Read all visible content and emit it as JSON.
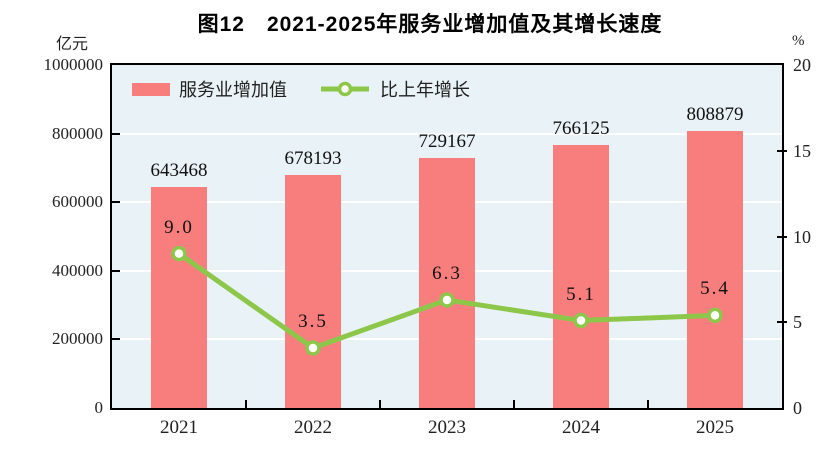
{
  "title": "图12　2021-2025年服务业增加值及其增长速度",
  "chart_data": {
    "type": "bar+line",
    "categories": [
      "2021",
      "2022",
      "2023",
      "2024",
      "2025"
    ],
    "series": [
      {
        "name": "服务业增加值",
        "type": "bar",
        "axis": "left",
        "color": "#F87E7E",
        "values": [
          643468,
          678193,
          729167,
          766125,
          808879
        ],
        "labels": [
          "643468",
          "678193",
          "729167",
          "766125",
          "808879"
        ]
      },
      {
        "name": "比上年增长",
        "type": "line",
        "axis": "right",
        "color": "#8DC74A",
        "marker": "circle-white-fill",
        "values": [
          9.0,
          3.5,
          6.3,
          5.1,
          5.4
        ],
        "labels": [
          "9.0",
          "3.5",
          "6.3",
          "5.1",
          "5.4"
        ]
      }
    ],
    "left_axis": {
      "unit": "亿元",
      "min": 0,
      "max": 1000000,
      "ticks": [
        0,
        200000,
        400000,
        600000,
        800000,
        1000000
      ],
      "tick_labels": [
        "0",
        "200000",
        "400000",
        "600000",
        "800000",
        "1000000"
      ]
    },
    "right_axis": {
      "unit": "%",
      "min": 0,
      "max": 20,
      "ticks": [
        0,
        5,
        10,
        15,
        20
      ],
      "tick_labels": [
        "0",
        "5",
        "10",
        "15",
        "20"
      ]
    },
    "grid": true,
    "gridline_color": "#FFFFFF",
    "plot_background": "#E9F2F7",
    "legend_position": "top-left-inside"
  }
}
